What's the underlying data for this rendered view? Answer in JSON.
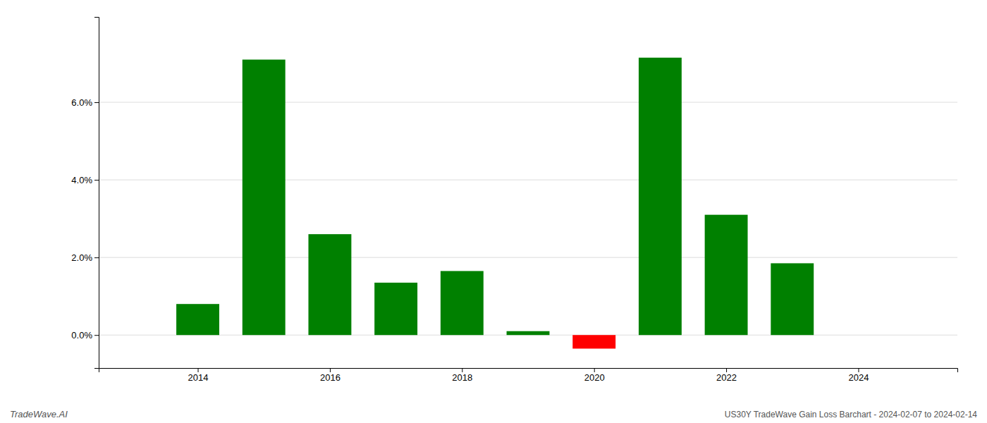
{
  "chart_data": {
    "type": "bar",
    "title": "US30Y TradeWave Gain Loss Barchart - 2024-02-07 to 2024-02-14",
    "annotations": [
      "TradeWave.AI"
    ],
    "x": [
      2014,
      2015,
      2016,
      2017,
      2018,
      2019,
      2020,
      2021,
      2022,
      2023
    ],
    "values": [
      0.008,
      0.071,
      0.026,
      0.0135,
      0.0165,
      0.001,
      -0.0035,
      0.0715,
      0.031,
      0.0185
    ],
    "colors": [
      "#008000",
      "#008000",
      "#008000",
      "#008000",
      "#008000",
      "#008000",
      "#ff0000",
      "#008000",
      "#008000",
      "#008000"
    ],
    "xlim": [
      2012.5,
      2025.5
    ],
    "xticks": [
      2014,
      2016,
      2018,
      2020,
      2022,
      2024
    ],
    "ylim": [
      -0.0085,
      0.082
    ],
    "yticks": [
      {
        "value": 0.0,
        "label": "0.0%"
      },
      {
        "value": 0.02,
        "label": "2.0%"
      },
      {
        "value": 0.04,
        "label": "4.0%"
      },
      {
        "value": 0.06,
        "label": "6.0%"
      }
    ],
    "grid": true
  }
}
